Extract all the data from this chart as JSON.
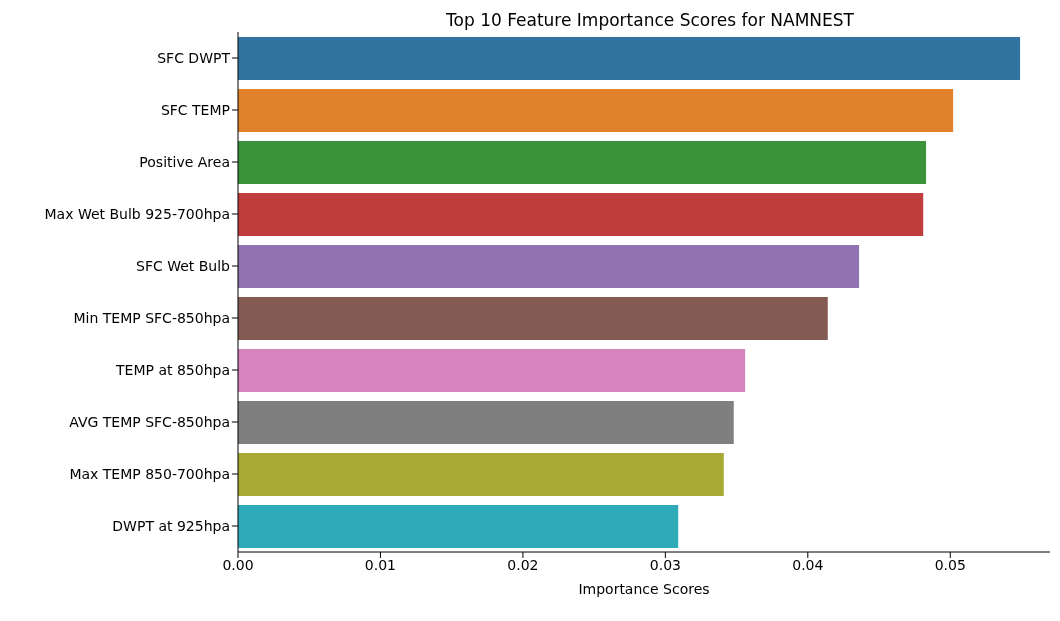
{
  "chart_data": {
    "type": "bar",
    "orientation": "horizontal",
    "title": "Top 10 Feature Importance Scores for NAMNEST",
    "xlabel": "Importance Scores",
    "categories": [
      "SFC DWPT",
      "SFC TEMP",
      "Positive Area",
      "Max Wet Bulb 925-700hpa",
      "SFC Wet Bulb",
      "Min TEMP SFC-850hpa",
      "TEMP at 850hpa",
      "AVG TEMP SFC-850hpa",
      "Max TEMP 850-700hpa",
      "DWPT at 925hpa"
    ],
    "values": [
      0.0549,
      0.0502,
      0.0483,
      0.0481,
      0.0436,
      0.0414,
      0.0356,
      0.0348,
      0.0341,
      0.0309
    ],
    "colors": [
      "#3274a1",
      "#e1812c",
      "#3a923a",
      "#c03d3e",
      "#9372b2",
      "#845b53",
      "#d684bd",
      "#7f7f7f",
      "#a9aa35",
      "#2eaab8"
    ],
    "xlim": [
      0,
      0.057
    ],
    "xticks": [
      {
        "value": 0,
        "label": "0.00"
      },
      {
        "value": 0.01,
        "label": "0.01"
      },
      {
        "value": 0.02,
        "label": "0.02"
      },
      {
        "value": 0.03,
        "label": "0.03"
      },
      {
        "value": 0.04,
        "label": "0.04"
      },
      {
        "value": 0.05,
        "label": "0.05"
      }
    ],
    "grid": false,
    "legend": false
  }
}
